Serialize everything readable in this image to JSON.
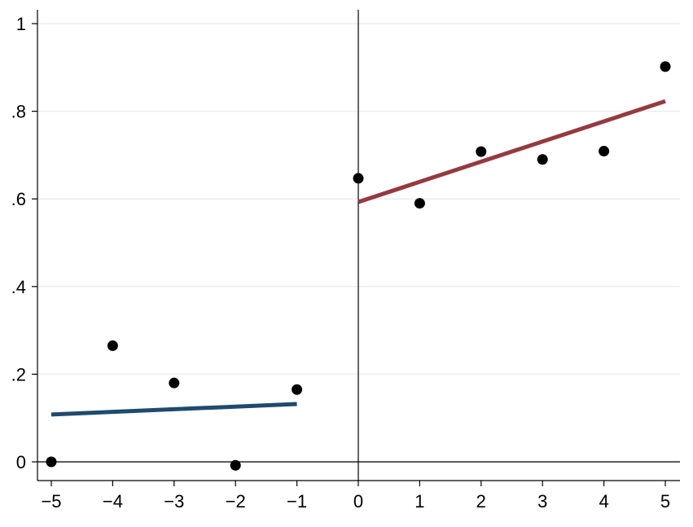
{
  "chart_data": {
    "type": "scatter",
    "title": "",
    "xlabel": "",
    "ylabel": "",
    "xlim": [
      -5,
      5
    ],
    "ylim": [
      0,
      1
    ],
    "x_ticks": [
      -5,
      -4,
      -3,
      -2,
      -1,
      0,
      1,
      2,
      3,
      4,
      5
    ],
    "x_tick_labels": [
      "−5",
      "−4",
      "−3",
      "−2",
      "−1",
      "0",
      "1",
      "2",
      "3",
      "4",
      "5"
    ],
    "y_ticks": [
      0,
      0.2,
      0.4,
      0.6,
      0.8,
      1
    ],
    "y_tick_labels": [
      "0",
      ".2",
      ".4",
      ".6",
      ".8",
      "1"
    ],
    "grid": "horizontal",
    "legend": "none",
    "reference_lines": {
      "horizontal_y": 0,
      "vertical_x": 0
    },
    "series": [
      {
        "kind": "points",
        "color": "#000000",
        "x": [
          -5,
          -4,
          -3,
          -2,
          -1,
          0,
          1,
          2,
          3,
          4,
          5
        ],
        "y": [
          0.0,
          0.265,
          0.18,
          -0.008,
          0.165,
          0.647,
          0.59,
          0.708,
          0.69,
          0.709,
          0.902
        ]
      },
      {
        "kind": "fit-line",
        "color": "#1f4a6e",
        "x": [
          -5,
          -1
        ],
        "y": [
          0.108,
          0.132
        ]
      },
      {
        "kind": "fit-line",
        "color": "#953a40",
        "x": [
          0,
          5
        ],
        "y": [
          0.593,
          0.823
        ]
      }
    ]
  }
}
